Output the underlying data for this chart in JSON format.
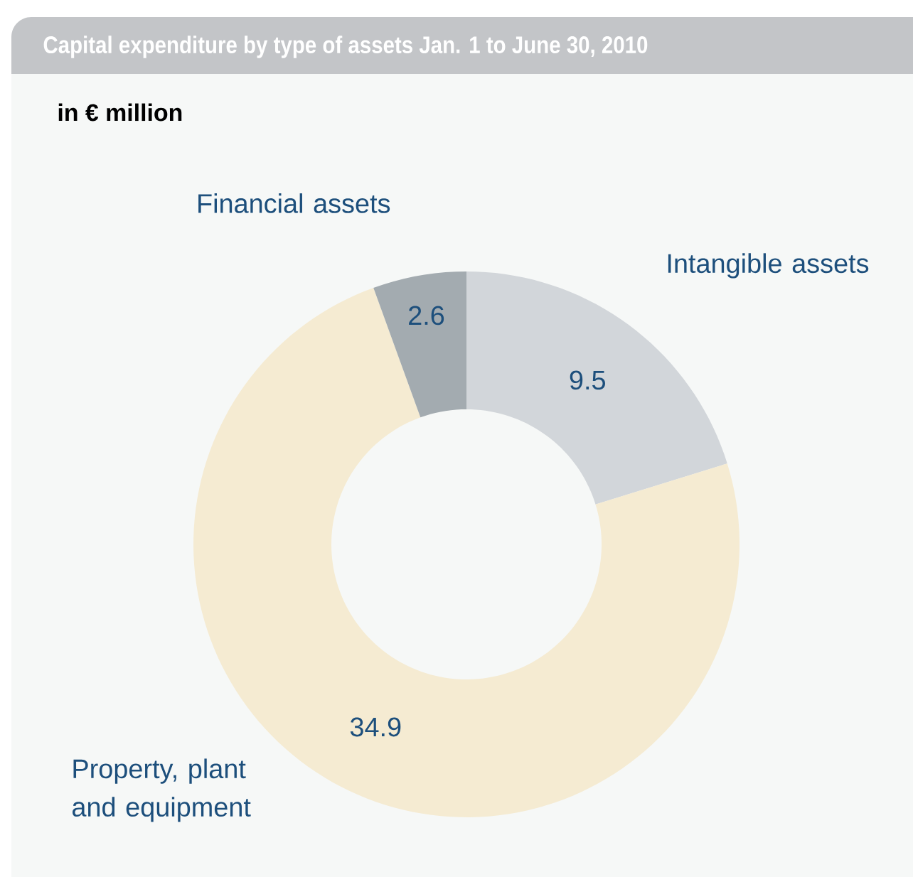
{
  "chart_data": {
    "type": "donut",
    "title": "Capital expenditure by type of assets Jan. 1 to June 30, 2010",
    "subtitle": "in € million",
    "categories": [
      "Intangible assets",
      "Property, plant and equipment",
      "Financial assets"
    ],
    "values": [
      9.5,
      34.9,
      2.6
    ],
    "colors": [
      "#d2d6da",
      "#f5ebd2",
      "#a3abb0"
    ],
    "data_labels": true
  }
}
